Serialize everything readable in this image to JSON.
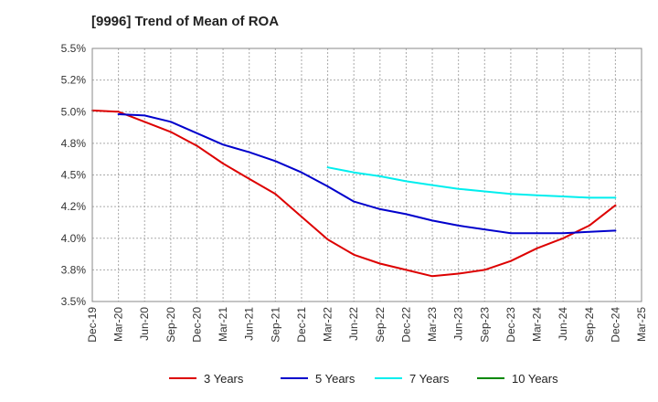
{
  "chart_data": {
    "type": "line",
    "title": "[9996]  Trend of Mean of ROA",
    "xlabel": "",
    "ylabel": "",
    "ylim": [
      3.5,
      5.5
    ],
    "y_ticks": [
      3.5,
      3.75,
      4.0,
      4.25,
      4.5,
      4.75,
      5.0,
      5.25,
      5.5
    ],
    "y_tick_labels": [
      "3.5%",
      "3.8%",
      "4.0%",
      "4.2%",
      "4.5%",
      "4.8%",
      "5.0%",
      "5.2%",
      "5.5%"
    ],
    "x_tick_labels": [
      "Dec-19",
      "Mar-20",
      "Jun-20",
      "Sep-20",
      "Dec-20",
      "Mar-21",
      "Jun-21",
      "Sep-21",
      "Dec-21",
      "Mar-22",
      "Jun-22",
      "Sep-22",
      "Dec-22",
      "Mar-23",
      "Jun-23",
      "Sep-23",
      "Dec-23",
      "Mar-24",
      "Jun-24",
      "Sep-24",
      "Dec-24",
      "Mar-25"
    ],
    "grid": true,
    "legend_position": "bottom",
    "series": [
      {
        "name": "3 Years",
        "color": "#dd0000",
        "start_index": 0,
        "values": [
          5.01,
          5.0,
          4.92,
          4.84,
          4.73,
          4.59,
          4.47,
          4.35,
          4.17,
          3.99,
          3.87,
          3.8,
          3.75,
          3.7,
          3.72,
          3.75,
          3.82,
          3.92,
          4.0,
          4.1,
          4.26
        ]
      },
      {
        "name": "5 Years",
        "color": "#0000cc",
        "start_index": 1,
        "values": [
          4.98,
          4.97,
          4.92,
          4.83,
          4.74,
          4.68,
          4.61,
          4.52,
          4.41,
          4.29,
          4.23,
          4.19,
          4.14,
          4.1,
          4.07,
          4.04,
          4.04,
          4.04,
          4.05,
          4.06
        ]
      },
      {
        "name": "7 Years",
        "color": "#00eeee",
        "start_index": 9,
        "values": [
          4.56,
          4.52,
          4.49,
          4.45,
          4.42,
          4.39,
          4.37,
          4.35,
          4.34,
          4.33,
          4.32,
          4.32
        ]
      },
      {
        "name": "10 Years",
        "color": "#008800",
        "start_index": 0,
        "values": []
      }
    ]
  },
  "colors": {
    "axis": "#888888",
    "grid": "#aaaaaa",
    "background": "#ffffff"
  }
}
